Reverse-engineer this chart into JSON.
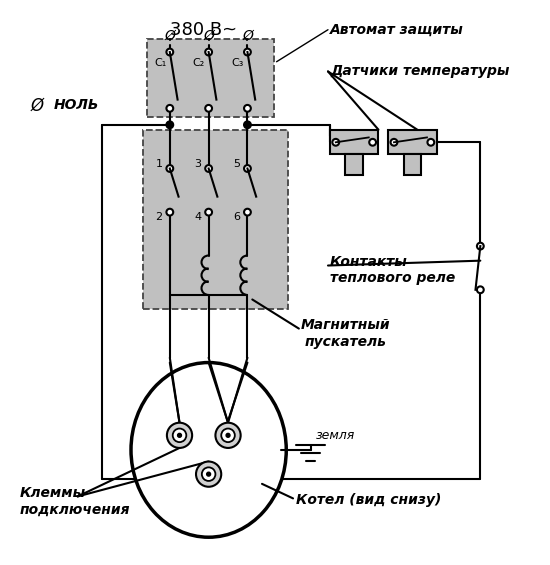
{
  "background_color": "#ffffff",
  "line_color": "#000000",
  "gray_fill": "#c0c0c0",
  "title": "380 В~",
  "labels": {
    "nol": "НОЛЬ",
    "avtomat": "Автомат защиты",
    "datchiki": "Датчики температуры",
    "kontakty": "Контакты\nтеплового реле",
    "magnitny": "Магнитный\nпускатель",
    "klemmy": "Клеммы\nподключения",
    "kotel": "Котел (вид снизу)",
    "zemlya": "земля",
    "c1": "C₁",
    "c2": "C₂",
    "c3": "C₃"
  }
}
